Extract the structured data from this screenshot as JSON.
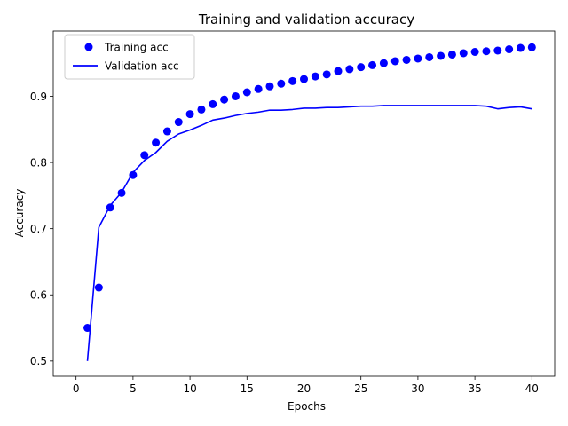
{
  "chart_data": {
    "type": "line",
    "title": "Training and validation accuracy",
    "xlabel": "Epochs",
    "ylabel": "Accuracy",
    "xlim": [
      -2,
      42
    ],
    "ylim": [
      0.477,
      0.9985
    ],
    "xticks": [
      0,
      5,
      10,
      15,
      20,
      25,
      30,
      35,
      40
    ],
    "yticks": [
      0.5,
      0.6,
      0.7,
      0.8,
      0.9
    ],
    "grid": false,
    "legend_position": "top-left",
    "x": [
      1,
      2,
      3,
      4,
      5,
      6,
      7,
      8,
      9,
      10,
      11,
      12,
      13,
      14,
      15,
      16,
      17,
      18,
      19,
      20,
      21,
      22,
      23,
      24,
      25,
      26,
      27,
      28,
      29,
      30,
      31,
      32,
      33,
      34,
      35,
      36,
      37,
      38,
      39,
      40
    ],
    "series": [
      {
        "name": "Training acc",
        "style": "markers",
        "color": "#0000ff",
        "values": [
          0.55,
          0.611,
          0.732,
          0.754,
          0.781,
          0.811,
          0.83,
          0.847,
          0.861,
          0.873,
          0.88,
          0.888,
          0.895,
          0.9,
          0.906,
          0.911,
          0.915,
          0.919,
          0.923,
          0.926,
          0.93,
          0.933,
          0.938,
          0.941,
          0.944,
          0.947,
          0.95,
          0.953,
          0.955,
          0.957,
          0.959,
          0.961,
          0.963,
          0.965,
          0.967,
          0.968,
          0.969,
          0.971,
          0.973,
          0.974
        ]
      },
      {
        "name": "Validation acc",
        "style": "line",
        "color": "#0000ff",
        "values": [
          0.5,
          0.702,
          0.735,
          0.755,
          0.785,
          0.803,
          0.815,
          0.832,
          0.843,
          0.849,
          0.856,
          0.864,
          0.867,
          0.871,
          0.874,
          0.876,
          0.879,
          0.879,
          0.88,
          0.882,
          0.882,
          0.883,
          0.883,
          0.884,
          0.885,
          0.885,
          0.886,
          0.886,
          0.886,
          0.886,
          0.886,
          0.886,
          0.886,
          0.886,
          0.886,
          0.885,
          0.881,
          0.883,
          0.884,
          0.881
        ]
      }
    ]
  }
}
